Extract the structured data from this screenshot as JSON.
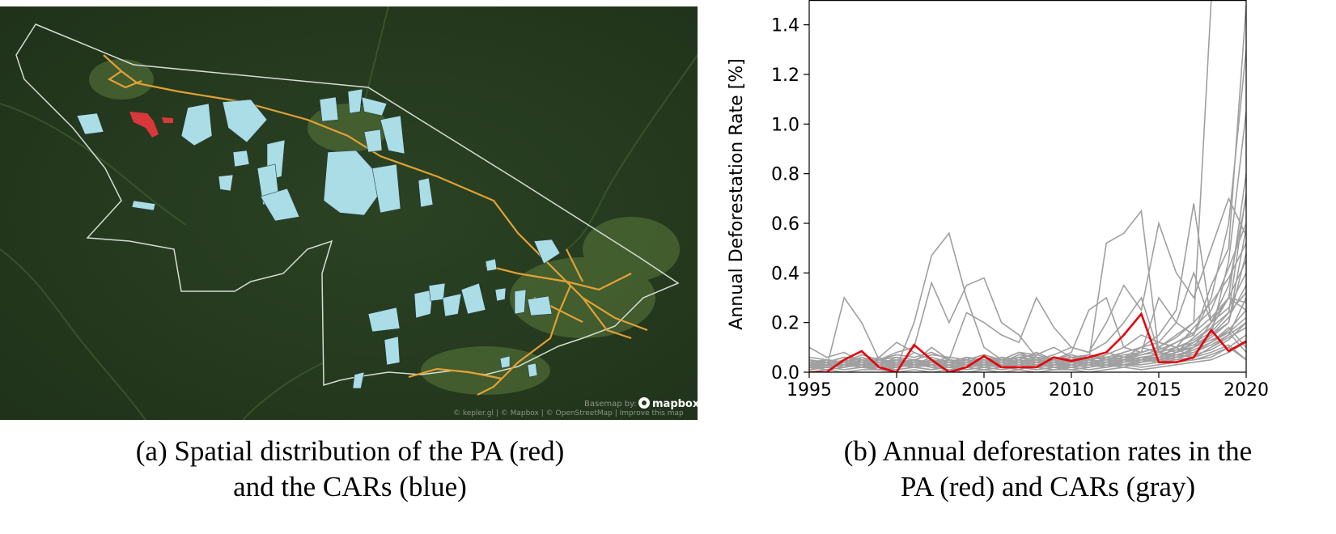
{
  "map": {
    "colors": {
      "forest": "#25391e",
      "forest_light": "#4f6a38",
      "cleared": "#7b8a4c",
      "boundary": "#cfd8cf",
      "roads": "#e2a134",
      "car_fill": "#aadde6",
      "pa_fill": "#d9383b"
    },
    "attribution": {
      "basemap_by": "Basemap by:",
      "mapbox": "mapbox",
      "credits": "© kepler.gl | © Mapbox | © OpenStreetMap | Improve this map"
    }
  },
  "chart_data": {
    "type": "line",
    "xlabel": "",
    "ylabel": "Annual Deforestation Rate [%]",
    "xlim": [
      1995,
      2020
    ],
    "ylim": [
      0,
      1.5
    ],
    "x_ticks": [
      1995,
      2000,
      2005,
      2010,
      2015,
      2020
    ],
    "y_ticks": [
      0.0,
      0.2,
      0.4,
      0.6,
      0.8,
      1.0,
      1.2,
      1.4
    ],
    "y_tick_labels": [
      "0.0",
      "0.2",
      "0.4",
      "0.6",
      "0.8",
      "1.0",
      "1.2",
      "1.4"
    ],
    "grid": false,
    "colors": {
      "pa": "#e8000b",
      "cars": "#a0a0a0"
    },
    "x": [
      1995,
      1996,
      1997,
      1998,
      1999,
      2000,
      2001,
      2002,
      2003,
      2004,
      2005,
      2006,
      2007,
      2008,
      2009,
      2010,
      2011,
      2012,
      2013,
      2014,
      2015,
      2016,
      2017,
      2018,
      2019,
      2020
    ],
    "pa_series": {
      "values": [
        0.0,
        0.0,
        0.05,
        0.085,
        0.02,
        0.0,
        0.11,
        0.05,
        0.0,
        0.02,
        0.065,
        0.02,
        0.02,
        0.02,
        0.06,
        0.045,
        0.06,
        0.08,
        0.15,
        0.235,
        0.04,
        0.04,
        0.06,
        0.17,
        0.085,
        0.125
      ]
    },
    "car_series": [
      {
        "values": [
          0.01,
          0.02,
          0.3,
          0.2,
          0.05,
          0.03,
          0.08,
          0.05,
          0.02,
          0.04,
          0.06,
          0.03,
          0.05,
          0.08,
          0.05,
          0.07,
          0.05,
          0.52,
          0.56,
          0.65,
          0.08,
          0.1,
          0.05,
          0.06,
          0.1,
          0.05
        ]
      },
      {
        "values": [
          0.04,
          0.02,
          0.03,
          0.06,
          0.04,
          0.02,
          0.2,
          0.47,
          0.56,
          0.3,
          0.1,
          0.05,
          0.08,
          0.05,
          0.07,
          0.1,
          0.08,
          0.12,
          0.2,
          0.3,
          0.08,
          0.07,
          0.06,
          0.1,
          0.15,
          0.2
        ]
      },
      {
        "values": [
          0.02,
          0.05,
          0.03,
          0.02,
          0.05,
          0.08,
          0.1,
          0.36,
          0.2,
          0.35,
          0.38,
          0.2,
          0.15,
          0.06,
          0.05,
          0.04,
          0.07,
          0.05,
          0.08,
          0.1,
          0.15,
          0.25,
          0.68,
          0.2,
          0.3,
          0.25
        ]
      },
      {
        "values": [
          0.03,
          0.04,
          0.06,
          0.05,
          0.03,
          0.05,
          0.04,
          0.1,
          0.05,
          0.24,
          0.2,
          0.15,
          0.12,
          0.3,
          0.18,
          0.1,
          0.08,
          0.2,
          0.35,
          0.25,
          0.6,
          0.4,
          0.3,
          0.5,
          0.7,
          0.55
        ]
      },
      {
        "values": [
          0.05,
          0.03,
          0.02,
          0.04,
          0.06,
          0.12,
          0.08,
          0.05,
          0.04,
          0.06,
          0.05,
          0.04,
          0.07,
          0.06,
          0.05,
          0.08,
          0.25,
          0.3,
          0.1,
          0.08,
          0.3,
          0.2,
          0.4,
          0.2,
          0.3,
          0.8
        ]
      },
      {
        "values": [
          0.1,
          0.06,
          0.08,
          0.04,
          0.05,
          0.07,
          0.06,
          0.08,
          0.05,
          0.04,
          0.06,
          0.05,
          0.08,
          0.07,
          0.1,
          0.06,
          0.05,
          0.07,
          0.1,
          0.15,
          0.12,
          0.2,
          0.15,
          0.35,
          0.5,
          1.48
        ]
      },
      {
        "values": [
          0.02,
          0.03,
          0.02,
          0.03,
          0.02,
          0.03,
          0.04,
          0.03,
          0.05,
          0.04,
          0.03,
          0.05,
          0.04,
          0.06,
          0.05,
          0.04,
          0.06,
          0.08,
          0.06,
          0.1,
          0.08,
          0.12,
          0.15,
          0.3,
          0.6,
          1.3
        ]
      },
      {
        "values": [
          0.03,
          0.05,
          0.04,
          0.06,
          0.03,
          0.05,
          0.03,
          0.04,
          0.06,
          0.05,
          0.04,
          0.06,
          0.05,
          0.04,
          0.06,
          0.05,
          0.07,
          0.05,
          0.06,
          0.08,
          0.1,
          0.15,
          0.2,
          1.5,
          1.5,
          1.5
        ]
      },
      {
        "values": [
          0.01,
          0.02,
          0.04,
          0.02,
          0.03,
          0.02,
          0.04,
          0.02,
          0.03,
          0.05,
          0.02,
          0.03,
          0.04,
          0.02,
          0.03,
          0.05,
          0.03,
          0.04,
          0.06,
          0.05,
          0.08,
          0.06,
          0.1,
          0.15,
          0.45,
          1.05
        ]
      },
      {
        "values": [
          0.04,
          0.03,
          0.05,
          0.03,
          0.04,
          0.03,
          0.05,
          0.04,
          0.03,
          0.04,
          0.05,
          0.03,
          0.04,
          0.05,
          0.04,
          0.03,
          0.05,
          0.04,
          0.05,
          0.04,
          0.06,
          0.08,
          0.1,
          0.2,
          0.35,
          0.7
        ]
      },
      {
        "values": [
          0.02,
          0.04,
          0.02,
          0.05,
          0.03,
          0.06,
          0.03,
          0.05,
          0.04,
          0.03,
          0.06,
          0.04,
          0.03,
          0.05,
          0.06,
          0.04,
          0.05,
          0.06,
          0.08,
          0.1,
          0.12,
          0.1,
          0.18,
          0.25,
          0.42,
          0.6
        ]
      },
      {
        "values": [
          0.03,
          0.02,
          0.03,
          0.04,
          0.02,
          0.04,
          0.05,
          0.03,
          0.02,
          0.03,
          0.04,
          0.02,
          0.05,
          0.03,
          0.04,
          0.06,
          0.04,
          0.05,
          0.04,
          0.06,
          0.05,
          0.08,
          0.12,
          0.18,
          0.3,
          0.45
        ]
      },
      {
        "values": [
          0.05,
          0.04,
          0.06,
          0.05,
          0.04,
          0.02,
          0.03,
          0.06,
          0.04,
          0.05,
          0.03,
          0.06,
          0.04,
          0.05,
          0.03,
          0.04,
          0.06,
          0.05,
          0.07,
          0.08,
          0.1,
          0.14,
          0.2,
          0.28,
          0.38,
          0.52
        ]
      },
      {
        "values": [
          0.01,
          0.03,
          0.02,
          0.03,
          0.05,
          0.03,
          0.02,
          0.04,
          0.03,
          0.02,
          0.04,
          0.03,
          0.02,
          0.04,
          0.03,
          0.02,
          0.04,
          0.03,
          0.05,
          0.06,
          0.07,
          0.09,
          0.1,
          0.15,
          0.22,
          0.35
        ]
      },
      {
        "values": [
          0.03,
          0.05,
          0.04,
          0.02,
          0.04,
          0.05,
          0.04,
          0.03,
          0.05,
          0.04,
          0.02,
          0.04,
          0.06,
          0.04,
          0.05,
          0.03,
          0.05,
          0.04,
          0.06,
          0.07,
          0.09,
          0.12,
          0.16,
          0.22,
          0.3,
          0.28
        ]
      },
      {
        "values": [
          0.02,
          0.03,
          0.05,
          0.04,
          0.03,
          0.04,
          0.02,
          0.05,
          0.04,
          0.03,
          0.05,
          0.04,
          0.03,
          0.02,
          0.04,
          0.05,
          0.03,
          0.06,
          0.05,
          0.08,
          0.1,
          0.08,
          0.14,
          0.2,
          0.26,
          0.4
        ]
      },
      {
        "values": [
          0.04,
          0.02,
          0.03,
          0.02,
          0.06,
          0.03,
          0.05,
          0.03,
          0.02,
          0.06,
          0.04,
          0.02,
          0.04,
          0.06,
          0.02,
          0.03,
          0.04,
          0.02,
          0.04,
          0.05,
          0.06,
          0.1,
          0.12,
          0.16,
          0.24,
          0.72
        ]
      },
      {
        "values": [
          0.02,
          0.01,
          0.02,
          0.03,
          0.01,
          0.02,
          0.03,
          0.02,
          0.01,
          0.02,
          0.03,
          0.02,
          0.01,
          0.03,
          0.02,
          0.01,
          0.02,
          0.03,
          0.02,
          0.04,
          0.05,
          0.04,
          0.06,
          0.1,
          0.14,
          0.18
        ]
      },
      {
        "values": [
          0.03,
          0.04,
          0.03,
          0.05,
          0.04,
          0.03,
          0.05,
          0.04,
          0.05,
          0.03,
          0.05,
          0.04,
          0.06,
          0.05,
          0.04,
          0.06,
          0.05,
          0.04,
          0.05,
          0.06,
          0.05,
          0.07,
          0.08,
          0.12,
          0.16,
          0.22
        ]
      },
      {
        "values": [
          0.01,
          0.02,
          0.01,
          0.02,
          0.02,
          0.01,
          0.02,
          0.01,
          0.02,
          0.01,
          0.02,
          0.01,
          0.02,
          0.01,
          0.02,
          0.02,
          0.01,
          0.02,
          0.03,
          0.02,
          0.03,
          0.04,
          0.05,
          0.07,
          0.1,
          0.15
        ]
      },
      {
        "values": [
          0.06,
          0.05,
          0.04,
          0.07,
          0.05,
          0.06,
          0.05,
          0.07,
          0.06,
          0.05,
          0.07,
          0.05,
          0.06,
          0.07,
          0.05,
          0.06,
          0.07,
          0.06,
          0.05,
          0.07,
          0.08,
          0.1,
          0.13,
          0.18,
          0.24,
          0.32
        ]
      },
      {
        "values": [
          0.0,
          0.01,
          0.0,
          0.01,
          0.01,
          0.0,
          0.01,
          0.0,
          0.01,
          0.0,
          0.01,
          0.0,
          0.01,
          0.0,
          0.01,
          0.01,
          0.0,
          0.01,
          0.02,
          0.01,
          0.02,
          0.03,
          0.04,
          0.05,
          0.08,
          0.12
        ]
      },
      {
        "values": [
          0.02,
          0.03,
          0.02,
          0.04,
          0.03,
          0.02,
          0.04,
          0.03,
          0.02,
          0.04,
          0.03,
          0.02,
          0.03,
          0.04,
          0.02,
          0.03,
          0.02,
          0.04,
          0.03,
          0.05,
          0.06,
          0.08,
          0.1,
          0.14,
          0.2,
          0.58
        ]
      },
      {
        "values": [
          0.05,
          0.03,
          0.04,
          0.03,
          0.05,
          0.04,
          0.03,
          0.05,
          0.04,
          0.03,
          0.04,
          0.05,
          0.03,
          0.04,
          0.05,
          0.03,
          0.04,
          0.05,
          0.04,
          0.06,
          0.07,
          0.09,
          0.11,
          0.15,
          0.2,
          0.48
        ]
      },
      {
        "values": [
          0.03,
          0.02,
          0.04,
          0.02,
          0.03,
          0.05,
          0.02,
          0.04,
          0.03,
          0.02,
          0.03,
          0.04,
          0.02,
          0.03,
          0.04,
          0.02,
          0.03,
          0.04,
          0.03,
          0.05,
          0.04,
          0.06,
          0.09,
          0.12,
          0.17,
          0.25
        ]
      },
      {
        "values": [
          0.02,
          0.04,
          0.03,
          0.02,
          0.04,
          0.03,
          0.05,
          0.02,
          0.04,
          0.03,
          0.02,
          0.04,
          0.03,
          0.05,
          0.03,
          0.04,
          0.03,
          0.02,
          0.05,
          0.04,
          0.06,
          0.05,
          0.08,
          0.11,
          0.15,
          0.3
        ]
      },
      {
        "values": [
          0.01,
          0.02,
          0.03,
          0.02,
          0.01,
          0.03,
          0.02,
          0.01,
          0.03,
          0.02,
          0.01,
          0.02,
          0.03,
          0.02,
          0.01,
          0.02,
          0.03,
          0.02,
          0.03,
          0.04,
          0.05,
          0.07,
          0.09,
          0.12,
          0.18,
          0.1
        ]
      },
      {
        "values": [
          0.04,
          0.05,
          0.03,
          0.04,
          0.05,
          0.04,
          0.03,
          0.05,
          0.04,
          0.05,
          0.03,
          0.05,
          0.04,
          0.03,
          0.05,
          0.04,
          0.05,
          0.03,
          0.04,
          0.06,
          0.06,
          0.08,
          0.1,
          0.13,
          0.16,
          0.08
        ]
      },
      {
        "values": [
          0.02,
          0.02,
          0.03,
          0.03,
          0.02,
          0.02,
          0.03,
          0.03,
          0.02,
          0.02,
          0.03,
          0.03,
          0.02,
          0.02,
          0.03,
          0.03,
          0.02,
          0.03,
          0.03,
          0.03,
          0.04,
          0.05,
          0.06,
          0.08,
          0.11,
          0.05
        ]
      },
      {
        "values": [
          0.03,
          0.03,
          0.02,
          0.03,
          0.04,
          0.03,
          0.02,
          0.03,
          0.04,
          0.03,
          0.02,
          0.03,
          0.04,
          0.03,
          0.02,
          0.03,
          0.04,
          0.03,
          0.02,
          0.04,
          0.05,
          0.06,
          0.07,
          0.09,
          0.13,
          0.2
        ]
      }
    ]
  },
  "captions": {
    "a_line1": "(a) Spatial distribution of the PA (red)",
    "a_line2": "and the CARs (blue)",
    "b_line1": "(b) Annual deforestation rates in the",
    "b_line2": "PA (red) and CARs (gray)"
  }
}
